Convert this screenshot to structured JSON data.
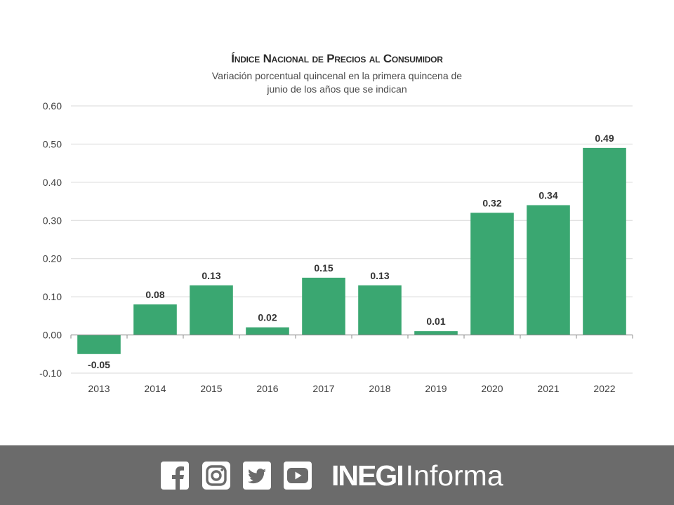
{
  "chart_data": {
    "type": "bar",
    "title": "Índice Nacional de Precios al Consumidor",
    "subtitle_lines": [
      "Variación porcentual quincenal en la primera quincena de",
      "junio de los años que se indican"
    ],
    "categories": [
      "2013",
      "2014",
      "2015",
      "2016",
      "2017",
      "2018",
      "2019",
      "2020",
      "2021",
      "2022"
    ],
    "values": [
      -0.05,
      0.08,
      0.13,
      0.02,
      0.15,
      0.13,
      0.01,
      0.32,
      0.34,
      0.49
    ],
    "value_labels": [
      "-0.05",
      "0.08",
      "0.13",
      "0.02",
      "0.15",
      "0.13",
      "0.01",
      "0.32",
      "0.34",
      "0.49"
    ],
    "y_ticks": [
      -0.1,
      0.0,
      0.1,
      0.2,
      0.3,
      0.4,
      0.5,
      0.6
    ],
    "y_tick_labels": [
      "-0.10",
      "0.00",
      "0.10",
      "0.20",
      "0.30",
      "0.40",
      "0.50",
      "0.60"
    ],
    "ylim": [
      -0.1,
      0.6
    ],
    "xlabel": "",
    "ylabel": "",
    "grid": true,
    "legend": "none",
    "colors": {
      "bar": "#3aa771",
      "grid": "#d9d9d9",
      "axis": "#8c8c8c",
      "label": "#333333"
    }
  },
  "footer": {
    "background": "#6b6b6b",
    "social_icons": [
      "facebook-icon",
      "instagram-icon",
      "twitter-icon",
      "youtube-icon"
    ],
    "brand_bold": "INEGI",
    "brand_light": "Informa"
  }
}
